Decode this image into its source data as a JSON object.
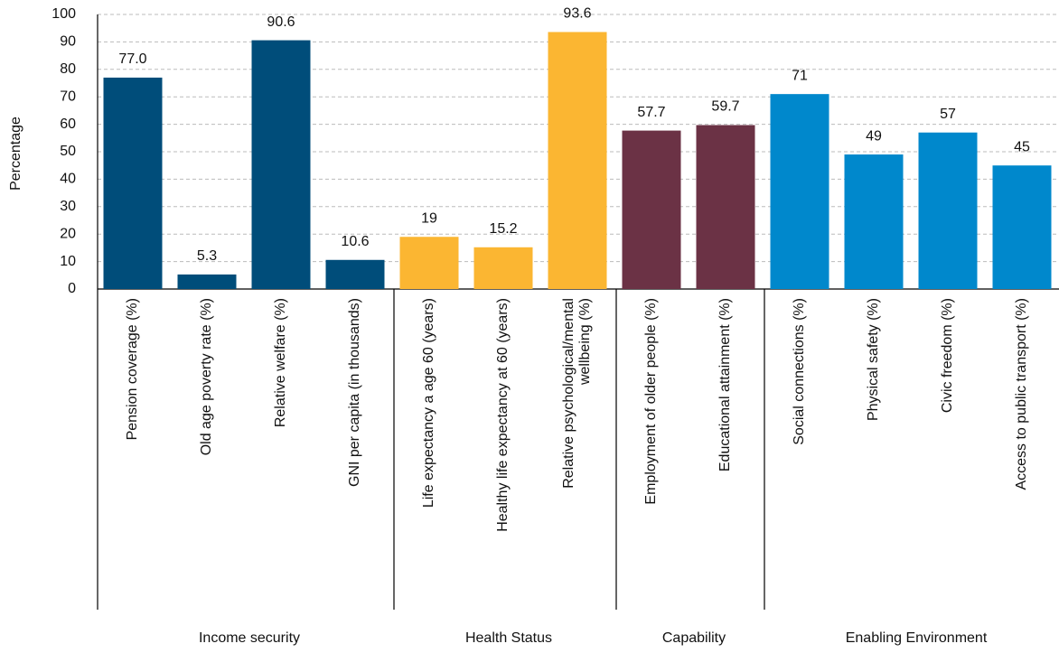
{
  "chart_data": {
    "type": "bar",
    "ylabel": "Percentage",
    "ylim": [
      0,
      100
    ],
    "yticks": [
      0,
      10,
      20,
      30,
      40,
      50,
      60,
      70,
      80,
      90,
      100
    ],
    "grid": true,
    "groups": [
      {
        "name": "Income security",
        "color": "#004d7a",
        "categories": [
          "Pension coverage (%)",
          "Old age poverty rate (%)",
          "Relative welfare (%)",
          "GNI per capita (in thousands)"
        ],
        "values": [
          77,
          5.3,
          90.6,
          10.6
        ],
        "value_labels": [
          "77.0",
          "5.3",
          "90.6",
          "10.6"
        ]
      },
      {
        "name": "Health Status",
        "color": "#fbb632",
        "categories": [
          "Life expectancy a age 60 (years)",
          "Healthy life expectancy at 60 (years)",
          "Relative psychological/mental wellbeing (%)"
        ],
        "values": [
          19,
          15.2,
          93.6
        ],
        "value_labels": [
          "19",
          "15.2",
          "93.6"
        ]
      },
      {
        "name": "Capability",
        "color": "#6b3245",
        "categories": [
          "Employment of older people (%)",
          "Educational attainment (%)"
        ],
        "values": [
          57.7,
          59.7
        ],
        "value_labels": [
          "57.7",
          "59.7"
        ]
      },
      {
        "name": "Enabling Environment",
        "color": "#0088cc",
        "categories": [
          "Social connections (%)",
          "Physical safety (%)",
          "Civic freedom (%)",
          "Access to public transport (%)"
        ],
        "values": [
          71,
          49,
          57,
          45
        ],
        "value_labels": [
          "71",
          "49",
          "57",
          "45"
        ]
      }
    ]
  }
}
